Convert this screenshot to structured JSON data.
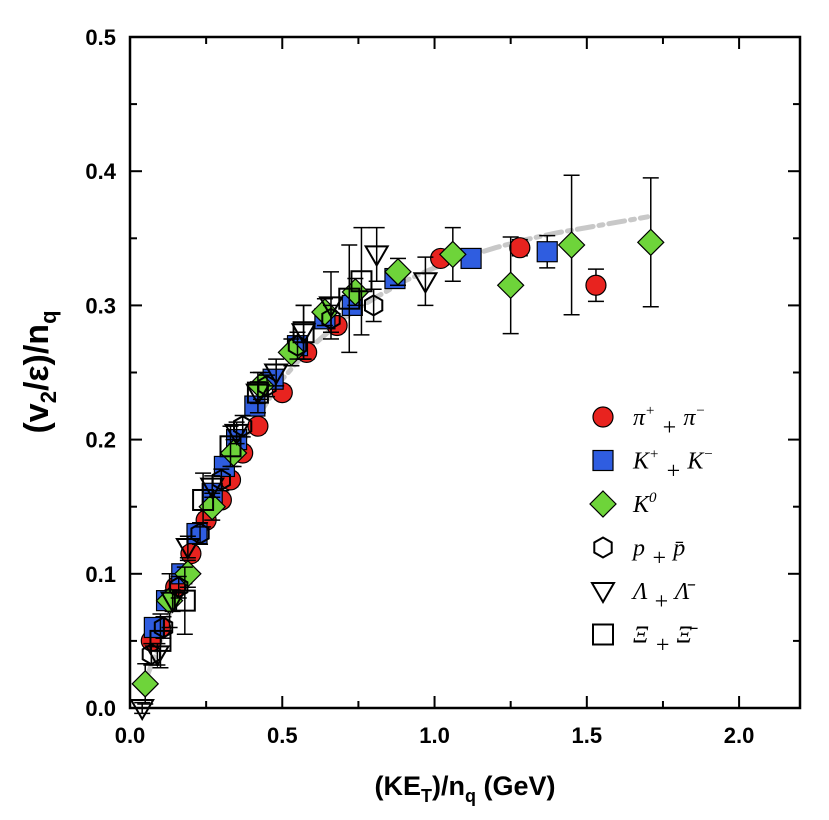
{
  "chart_data": {
    "type": "scatter",
    "xlim": [
      0.0,
      2.2
    ],
    "ylim": [
      0.0,
      0.5
    ],
    "x_ticks": [
      "0.0",
      "0.5",
      "1.0",
      "1.5",
      "2.0"
    ],
    "y_ticks": [
      "0.0",
      "0.1",
      "0.2",
      "0.3",
      "0.4",
      "0.5"
    ],
    "y_label": {
      "base": "(v",
      "sub": "2",
      "mid": "/ε)/n",
      "sub2": "q"
    },
    "x_label": {
      "base": "(KE",
      "sub": "T",
      "mid": ")/n",
      "sub2": "q",
      "tail": " (GeV)"
    },
    "legend_position": "right",
    "series": [
      {
        "name": "pion",
        "marker": "circle",
        "color": "#e8231f",
        "label": {
          "a": "π",
          "a_sup": "+",
          "op": " + ",
          "b": "π",
          "b_sup": "−"
        },
        "points": [
          [
            0.07,
            0.05
          ],
          [
            0.1,
            0.06
          ],
          [
            0.15,
            0.09
          ],
          [
            0.2,
            0.115
          ],
          [
            0.25,
            0.14
          ],
          [
            0.3,
            0.155
          ],
          [
            0.33,
            0.17
          ],
          [
            0.37,
            0.19
          ],
          [
            0.42,
            0.21
          ],
          [
            0.5,
            0.235
          ],
          [
            0.58,
            0.265
          ],
          [
            0.68,
            0.285
          ],
          [
            1.02,
            0.335
          ],
          [
            1.28,
            0.343
          ],
          [
            1.53,
            0.315
          ]
        ],
        "errors": [
          0.005,
          0.005,
          0.005,
          0.005,
          0.005,
          0.005,
          0.005,
          0.005,
          0.005,
          0.005,
          0.005,
          0.005,
          0.005,
          0.006,
          0.012
        ]
      },
      {
        "name": "kaon",
        "marker": "square",
        "color": "#2f5de0",
        "label": {
          "a": "K",
          "a_sup": "+",
          "op": " + ",
          "b": "K",
          "b_sup": "−"
        },
        "points": [
          [
            0.08,
            0.06
          ],
          [
            0.12,
            0.08
          ],
          [
            0.17,
            0.1
          ],
          [
            0.22,
            0.13
          ],
          [
            0.27,
            0.16
          ],
          [
            0.31,
            0.18
          ],
          [
            0.35,
            0.2
          ],
          [
            0.41,
            0.225
          ],
          [
            0.47,
            0.245
          ],
          [
            0.55,
            0.27
          ],
          [
            0.64,
            0.29
          ],
          [
            0.73,
            0.3
          ],
          [
            0.87,
            0.32
          ],
          [
            1.12,
            0.335
          ],
          [
            1.37,
            0.34
          ]
        ],
        "errors": [
          0.005,
          0.005,
          0.005,
          0.005,
          0.005,
          0.005,
          0.005,
          0.005,
          0.005,
          0.005,
          0.005,
          0.005,
          0.005,
          0.006,
          0.012
        ]
      },
      {
        "name": "k0",
        "marker": "diamond",
        "color": "#6ed43a",
        "label": {
          "a": "K",
          "a_sup": "0",
          "op": "",
          "b": "",
          "b_sup": ""
        },
        "points": [
          [
            0.05,
            0.018
          ],
          [
            0.13,
            0.08
          ],
          [
            0.19,
            0.1
          ],
          [
            0.27,
            0.15
          ],
          [
            0.34,
            0.19
          ],
          [
            0.43,
            0.24
          ],
          [
            0.53,
            0.265
          ],
          [
            0.64,
            0.295
          ],
          [
            0.74,
            0.31
          ],
          [
            0.88,
            0.325
          ],
          [
            1.06,
            0.338
          ],
          [
            1.25,
            0.315
          ],
          [
            1.45,
            0.345
          ],
          [
            1.71,
            0.347
          ]
        ],
        "errors": [
          0.015,
          0.02,
          0.01,
          0.01,
          0.01,
          0.01,
          0.01,
          0.01,
          0.01,
          0.01,
          0.02,
          0.036,
          0.052,
          0.048
        ]
      },
      {
        "name": "proton",
        "marker": "hexagon",
        "color": "#000000",
        "label": {
          "a": "p",
          "a_sup": "",
          "op": " + ",
          "b": "p̄",
          "b_sup": ""
        },
        "points": [
          [
            0.07,
            0.04
          ],
          [
            0.11,
            0.06
          ],
          [
            0.16,
            0.09
          ],
          [
            0.23,
            0.13
          ],
          [
            0.3,
            0.17
          ],
          [
            0.37,
            0.21
          ],
          [
            0.45,
            0.24
          ],
          [
            0.55,
            0.27
          ],
          [
            0.66,
            0.29
          ],
          [
            0.8,
            0.3
          ]
        ],
        "errors": [
          0.008,
          0.008,
          0.008,
          0.008,
          0.008,
          0.008,
          0.008,
          0.01,
          0.01,
          0.012
        ]
      },
      {
        "name": "lambda",
        "marker": "triangle-down",
        "color": "#000000",
        "label": {
          "a": "Λ",
          "a_sup": "",
          "op": " + ",
          "b": "Λ̄",
          "b_sup": ""
        },
        "points": [
          [
            0.04,
            0.0
          ],
          [
            0.09,
            0.04
          ],
          [
            0.14,
            0.08
          ],
          [
            0.19,
            0.12
          ],
          [
            0.27,
            0.165
          ],
          [
            0.35,
            0.205
          ],
          [
            0.42,
            0.235
          ],
          [
            0.48,
            0.25
          ],
          [
            0.57,
            0.28
          ],
          [
            0.66,
            0.3
          ],
          [
            0.81,
            0.338
          ],
          [
            0.97,
            0.318
          ]
        ],
        "errors": [
          0.004,
          0.008,
          0.008,
          0.008,
          0.008,
          0.008,
          0.008,
          0.01,
          0.02,
          0.025,
          0.02,
          0.018
        ]
      },
      {
        "name": "xi",
        "marker": "square-open",
        "color": "#000000",
        "label": {
          "a": "Ξ",
          "a_sup": "",
          "op": " + ",
          "b": "Ξ̄",
          "b_sup": ""
        },
        "points": [
          [
            0.1,
            0.05
          ],
          [
            0.18,
            0.08
          ],
          [
            0.24,
            0.155
          ],
          [
            0.33,
            0.195
          ],
          [
            0.42,
            0.235
          ],
          [
            0.57,
            0.28
          ],
          [
            0.72,
            0.305
          ],
          [
            0.76,
            0.318
          ]
        ],
        "errors": [
          0.02,
          0.025,
          0.02,
          0.015,
          0.015,
          0.02,
          0.04,
          0.04
        ]
      }
    ],
    "fit_curve": {
      "style": "dash-dot",
      "color": "#c8c8c8",
      "x": [
        0.05,
        0.1,
        0.15,
        0.2,
        0.25,
        0.3,
        0.35,
        0.4,
        0.45,
        0.5,
        0.55,
        0.6,
        0.65,
        0.7,
        0.75,
        0.8,
        0.9,
        1.0,
        1.1,
        1.2,
        1.3,
        1.4,
        1.5,
        1.6,
        1.7
      ],
      "y": [
        0.02,
        0.05,
        0.085,
        0.115,
        0.145,
        0.168,
        0.19,
        0.21,
        0.228,
        0.245,
        0.258,
        0.27,
        0.28,
        0.29,
        0.298,
        0.305,
        0.318,
        0.328,
        0.336,
        0.343,
        0.349,
        0.354,
        0.358,
        0.362,
        0.366
      ]
    }
  }
}
